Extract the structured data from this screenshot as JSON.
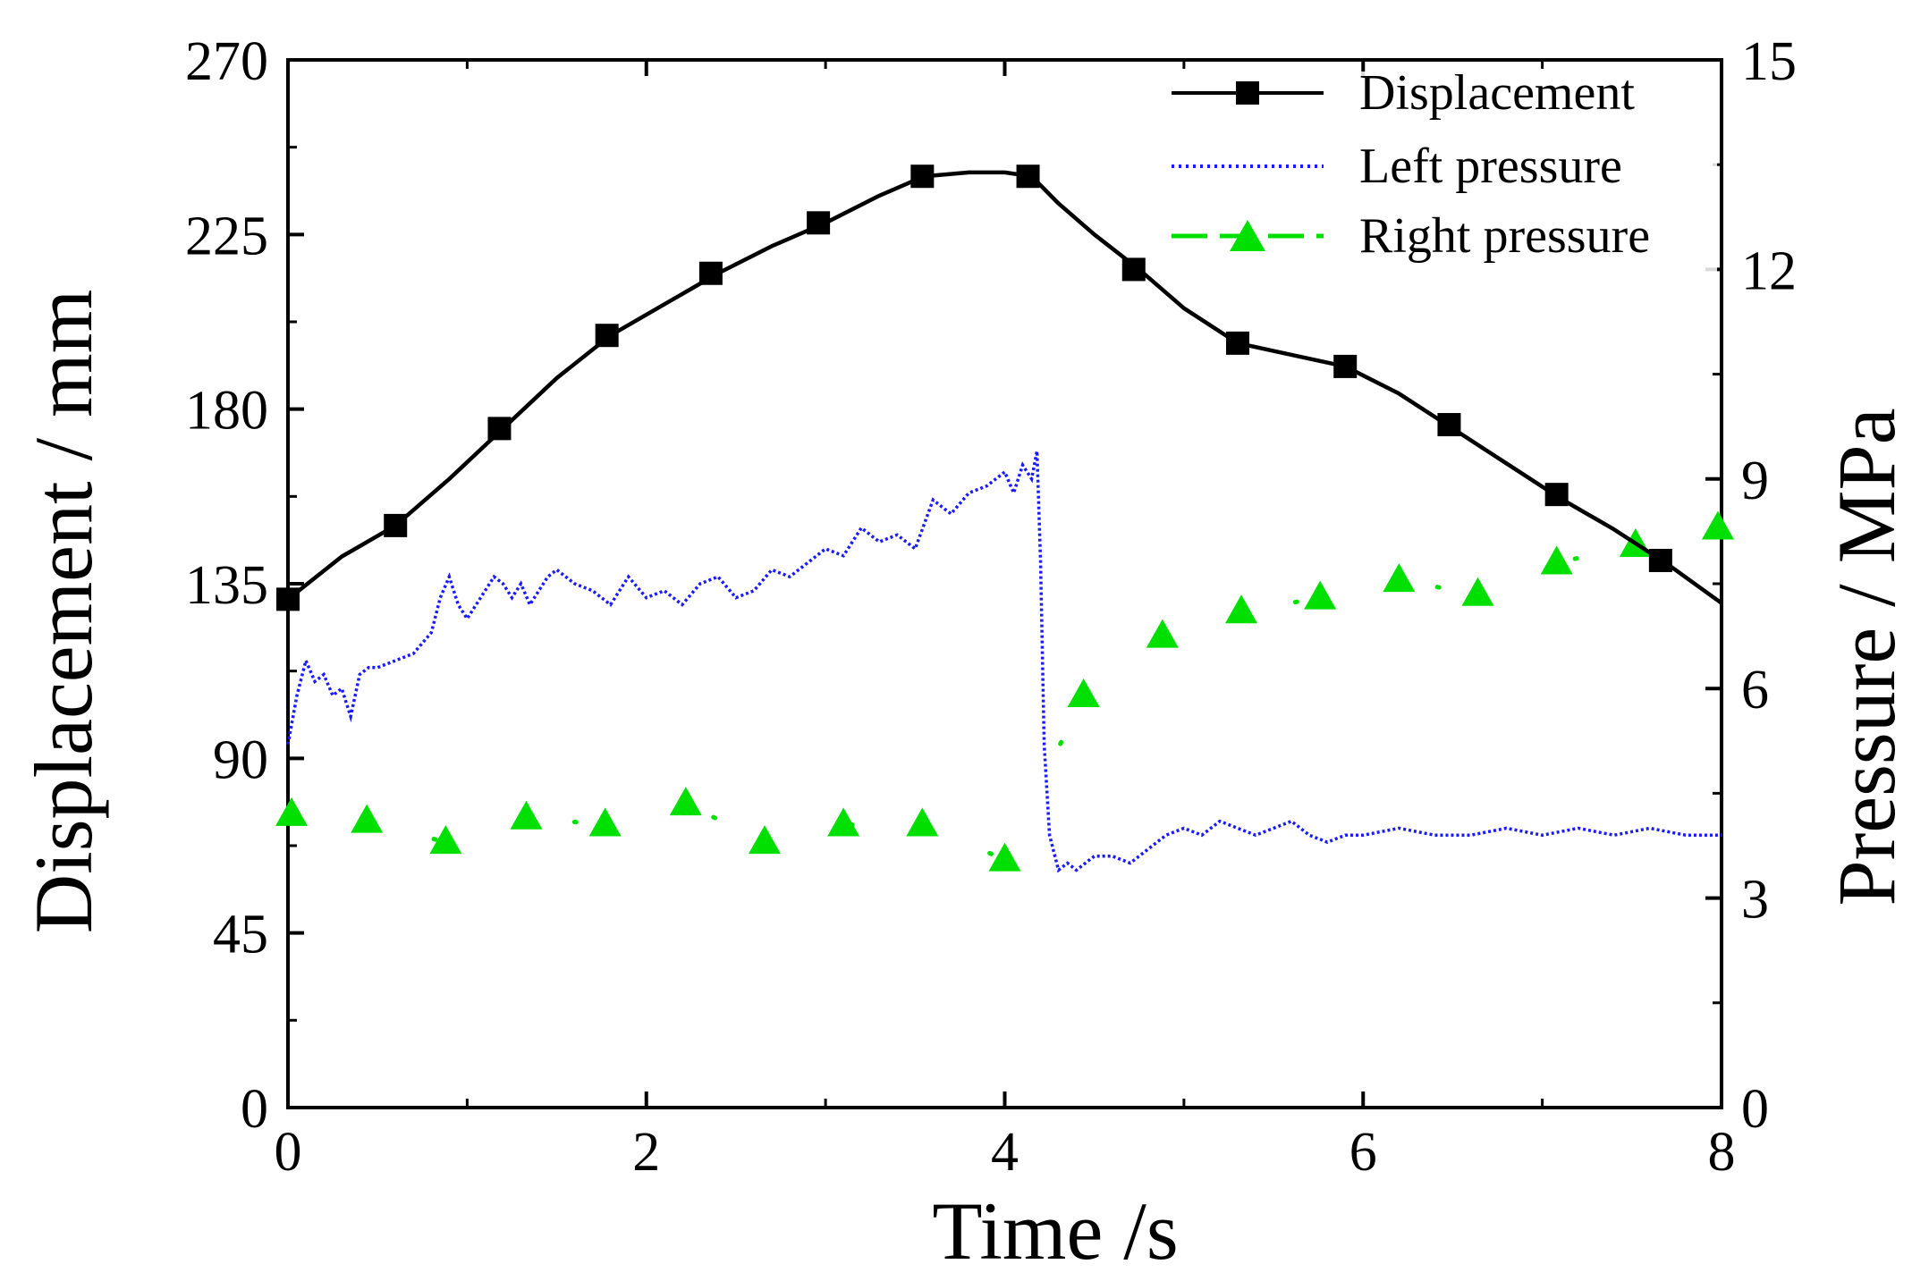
{
  "chart_data": {
    "type": "line",
    "title": "",
    "xlabel": "Time /s",
    "ylabel_left": "Displacement / mm",
    "ylabel_right": "Pressure / MPa",
    "xlim": [
      0,
      8
    ],
    "ylim_left": [
      0,
      270
    ],
    "ylim_right": [
      0,
      15
    ],
    "x_ticks": [
      "0",
      "2",
      "4",
      "6",
      "8"
    ],
    "y_left_ticks": [
      "0",
      "45",
      "90",
      "135",
      "180",
      "225",
      "270"
    ],
    "y_right_ticks": [
      "0",
      "3",
      "6",
      "9",
      "12",
      "15"
    ],
    "legend_position": "top-right",
    "colors": {
      "displacement": "#000000",
      "left_pressure": "#1a1aff",
      "right_pressure": "#00e000"
    },
    "series": [
      {
        "name": "Displacement",
        "axis": "left",
        "style": "solid line with square markers",
        "x": [
          0,
          0.3,
          0.6,
          0.9,
          1.2,
          1.5,
          1.8,
          2.1,
          2.4,
          2.7,
          3.0,
          3.3,
          3.55,
          3.8,
          4.0,
          4.15,
          4.3,
          4.5,
          4.75,
          5.0,
          5.3,
          5.6,
          5.9,
          6.2,
          6.5,
          6.8,
          7.1,
          7.4,
          7.7,
          8.0
        ],
        "values": [
          131,
          142,
          150,
          162,
          175,
          188,
          199,
          207,
          215,
          222,
          228,
          235,
          240,
          241,
          241,
          240,
          233,
          225,
          216,
          206,
          197,
          194,
          191,
          184,
          175,
          166,
          157,
          149,
          140,
          130
        ],
        "markers": {
          "x": [
            0,
            0.6,
            1.18,
            1.78,
            2.36,
            2.96,
            3.54,
            4.13,
            4.72,
            5.3,
            5.9,
            6.48,
            7.08,
            7.66
          ],
          "values": [
            131,
            150,
            175,
            199,
            215,
            228,
            240,
            240,
            216,
            197,
            191,
            176,
            158,
            141
          ]
        }
      },
      {
        "name": "Left pressure",
        "axis": "right",
        "style": "dotted line",
        "x": [
          0,
          0.05,
          0.1,
          0.15,
          0.2,
          0.25,
          0.3,
          0.35,
          0.4,
          0.45,
          0.5,
          0.6,
          0.7,
          0.8,
          0.85,
          0.9,
          0.95,
          1.0,
          1.05,
          1.1,
          1.15,
          1.2,
          1.25,
          1.3,
          1.35,
          1.4,
          1.45,
          1.5,
          1.6,
          1.7,
          1.8,
          1.9,
          2.0,
          2.1,
          2.2,
          2.3,
          2.4,
          2.5,
          2.6,
          2.7,
          2.8,
          2.9,
          3.0,
          3.1,
          3.2,
          3.3,
          3.4,
          3.5,
          3.6,
          3.7,
          3.8,
          3.9,
          4.0,
          4.05,
          4.1,
          4.15,
          4.18,
          4.2,
          4.22,
          4.25,
          4.3,
          4.35,
          4.4,
          4.5,
          4.6,
          4.7,
          4.8,
          4.9,
          5.0,
          5.1,
          5.2,
          5.3,
          5.4,
          5.5,
          5.6,
          5.7,
          5.8,
          5.9,
          6.0,
          6.2,
          6.4,
          6.6,
          6.8,
          7.0,
          7.2,
          7.4,
          7.6,
          7.8,
          8.0
        ],
        "values": [
          5.2,
          5.9,
          6.4,
          6.1,
          6.2,
          5.9,
          6.0,
          5.6,
          6.2,
          6.3,
          6.3,
          6.4,
          6.5,
          6.8,
          7.3,
          7.6,
          7.2,
          7.0,
          7.2,
          7.4,
          7.6,
          7.5,
          7.3,
          7.5,
          7.2,
          7.4,
          7.6,
          7.7,
          7.5,
          7.4,
          7.2,
          7.6,
          7.3,
          7.4,
          7.2,
          7.5,
          7.6,
          7.3,
          7.4,
          7.7,
          7.6,
          7.8,
          8.0,
          7.9,
          8.3,
          8.1,
          8.2,
          8.0,
          8.7,
          8.5,
          8.8,
          8.9,
          9.1,
          8.8,
          9.2,
          9.0,
          9.4,
          7.8,
          5.2,
          3.9,
          3.4,
          3.5,
          3.4,
          3.6,
          3.6,
          3.5,
          3.7,
          3.9,
          4.0,
          3.9,
          4.1,
          4.0,
          3.9,
          4.0,
          4.1,
          3.9,
          3.8,
          3.9,
          3.9,
          4.0,
          3.9,
          3.9,
          4.0,
          3.9,
          4.0,
          3.9,
          4.0,
          3.9,
          3.9
        ]
      },
      {
        "name": "Right pressure",
        "axis": "right",
        "style": "dashed line with triangle markers",
        "x": [
          0.02,
          0.44,
          0.88,
          1.33,
          1.77,
          2.22,
          2.66,
          3.1,
          3.54,
          4.0,
          4.44,
          4.88,
          5.32,
          5.76,
          6.2,
          6.64,
          7.08,
          7.52,
          7.98
        ],
        "values": [
          4.2,
          4.1,
          3.8,
          4.15,
          4.05,
          4.35,
          3.8,
          4.05,
          4.05,
          3.55,
          5.9,
          6.75,
          7.1,
          7.3,
          7.55,
          7.35,
          7.8,
          8.05,
          8.3
        ]
      }
    ]
  }
}
